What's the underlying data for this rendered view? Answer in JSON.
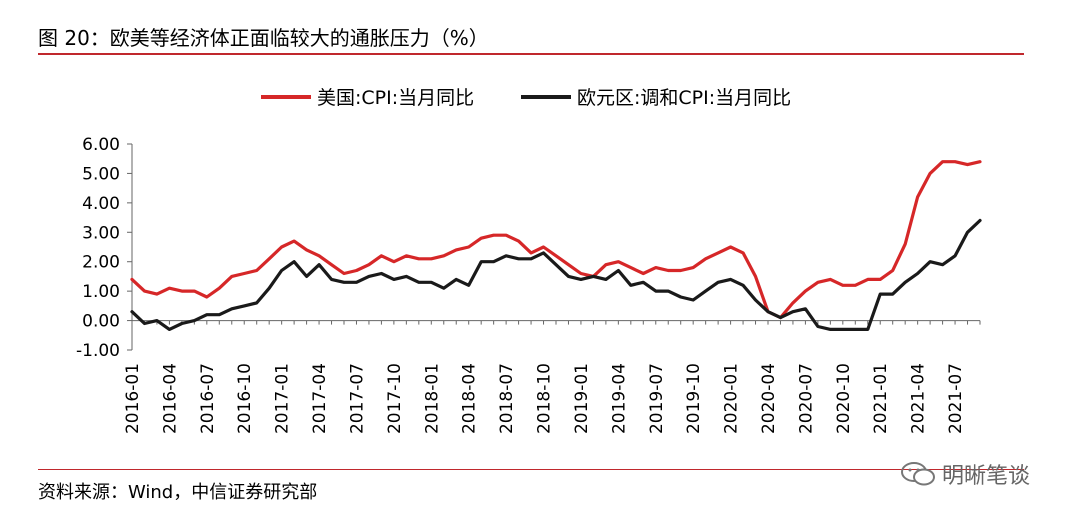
{
  "title": "图 20：欧美等经济体正面临较大的通胀压力（%）",
  "source": "资料来源：Wind，中信证券研究部",
  "watermark": "明晰笔谈",
  "colors": {
    "us": "#d62728",
    "eu": "#1a1a1a",
    "accent": "#c0282d"
  },
  "chart_data": {
    "type": "line",
    "title": "图 20：欧美等经济体正面临较大的通胀压力（%）",
    "xlabel": "",
    "ylabel": "",
    "ylim": [
      -1,
      6
    ],
    "yticks": [
      "6.00",
      "5.00",
      "4.00",
      "3.00",
      "2.00",
      "1.00",
      "0.00",
      "-1.00"
    ],
    "ytick_values": [
      6,
      5,
      4,
      3,
      2,
      1,
      0,
      -1
    ],
    "xticks": [
      "2016-01",
      "2016-04",
      "2016-07",
      "2016-10",
      "2017-01",
      "2017-04",
      "2017-07",
      "2017-10",
      "2018-01",
      "2018-04",
      "2018-07",
      "2018-10",
      "2019-01",
      "2019-04",
      "2019-07",
      "2019-10",
      "2020-01",
      "2020-04",
      "2020-07",
      "2020-10",
      "2021-01",
      "2021-04",
      "2021-07"
    ],
    "legend_position": "top",
    "grid": false,
    "series": [
      {
        "name": "美国:CPI:当月同比",
        "color": "#d62728",
        "values": [
          1.4,
          1.0,
          0.9,
          1.1,
          1.0,
          1.0,
          0.8,
          1.1,
          1.5,
          1.6,
          1.7,
          2.1,
          2.5,
          2.7,
          2.4,
          2.2,
          1.9,
          1.6,
          1.7,
          1.9,
          2.2,
          2.0,
          2.2,
          2.1,
          2.1,
          2.2,
          2.4,
          2.5,
          2.8,
          2.9,
          2.9,
          2.7,
          2.3,
          2.5,
          2.2,
          1.9,
          1.6,
          1.5,
          1.9,
          2.0,
          1.8,
          1.6,
          1.8,
          1.7,
          1.7,
          1.8,
          2.1,
          2.3,
          2.5,
          2.3,
          1.5,
          0.3,
          0.1,
          0.6,
          1.0,
          1.3,
          1.4,
          1.2,
          1.2,
          1.4,
          1.4,
          1.7,
          2.6,
          4.2,
          5.0,
          5.4,
          5.4,
          5.3,
          5.4
        ]
      },
      {
        "name": "欧元区:调和CPI:当月同比",
        "color": "#1a1a1a",
        "values": [
          0.3,
          -0.1,
          0.0,
          -0.3,
          -0.1,
          0.0,
          0.2,
          0.2,
          0.4,
          0.5,
          0.6,
          1.1,
          1.7,
          2.0,
          1.5,
          1.9,
          1.4,
          1.3,
          1.3,
          1.5,
          1.6,
          1.4,
          1.5,
          1.3,
          1.3,
          1.1,
          1.4,
          1.2,
          2.0,
          2.0,
          2.2,
          2.1,
          2.1,
          2.3,
          1.9,
          1.5,
          1.4,
          1.5,
          1.4,
          1.7,
          1.2,
          1.3,
          1.0,
          1.0,
          0.8,
          0.7,
          1.0,
          1.3,
          1.4,
          1.2,
          0.7,
          0.3,
          0.1,
          0.3,
          0.4,
          -0.2,
          -0.3,
          -0.3,
          -0.3,
          -0.3,
          0.9,
          0.9,
          1.3,
          1.6,
          2.0,
          1.9,
          2.2,
          3.0,
          3.4
        ]
      }
    ]
  }
}
